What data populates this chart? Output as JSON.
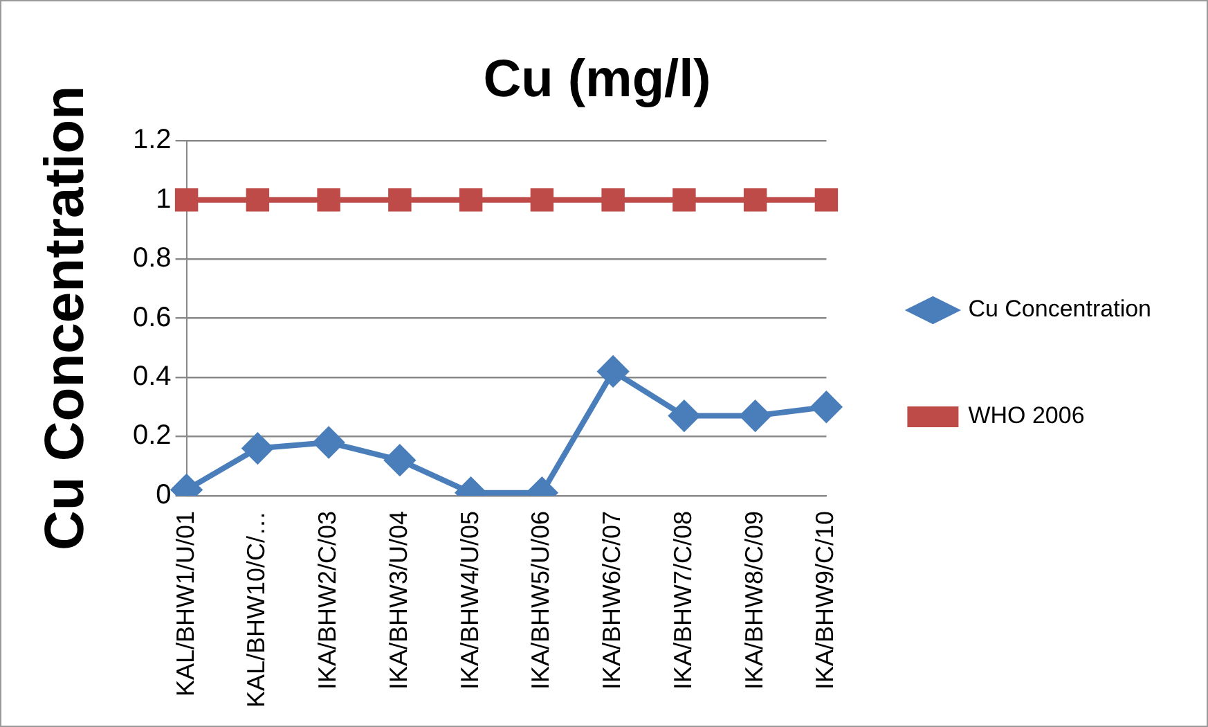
{
  "chart_data": {
    "type": "line",
    "title": "Cu (mg/l)",
    "ylabel": "Cu Concentration",
    "categories": [
      "KAL/BHW1/U/01",
      "KAL/BHW10/C/…",
      "IKA/BHW2/C/03",
      "IKA/BHW3/U/04",
      "IKA/BHW4/U/05",
      "IKA/BHW5/U/06",
      "IKA/BHW6/C/07",
      "IKA/BHW7/C/08",
      "IKA/BHW8/C/09",
      "IKA/BHW9/C/10"
    ],
    "series": [
      {
        "name": "Cu Concentration",
        "color": "#4a7ebb",
        "marker": "diamond",
        "values": [
          0.02,
          0.16,
          0.18,
          0.12,
          0.01,
          0.01,
          0.42,
          0.27,
          0.27,
          0.3
        ]
      },
      {
        "name": "WHO 2006",
        "color": "#be4b48",
        "marker": "square",
        "values": [
          1,
          1,
          1,
          1,
          1,
          1,
          1,
          1,
          1,
          1
        ]
      }
    ],
    "ylim": [
      0,
      1.2
    ],
    "yticks": [
      0,
      0.2,
      0.4,
      0.6,
      0.8,
      1,
      1.2
    ],
    "grid": "y",
    "legend": "right"
  }
}
